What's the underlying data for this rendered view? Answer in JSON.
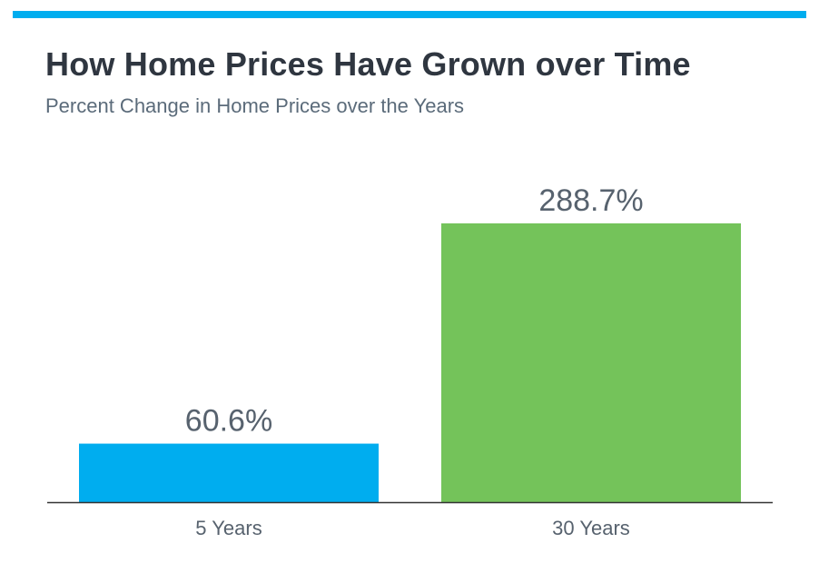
{
  "colors": {
    "accent": "#00adef",
    "title": "#2f3640",
    "subtitle": "#5b6b7a",
    "label": "#57626e",
    "axis": "#333333"
  },
  "header": {
    "title": "How Home Prices Have Grown over Time",
    "subtitle": "Percent Change in Home Prices over the Years"
  },
  "chart_data": {
    "type": "bar",
    "title": "How Home Prices Have Grown over Time",
    "subtitle": "Percent Change in Home Prices over the Years",
    "categories": [
      "5 Years",
      "30 Years"
    ],
    "values": [
      60.6,
      288.7
    ],
    "data_labels": [
      "60.6%",
      "288.7%"
    ],
    "bar_colors": [
      "#00adef",
      "#74c35a"
    ],
    "ylim": [
      0,
      300
    ],
    "grid": false,
    "legend": "none",
    "xlabel": "",
    "ylabel": ""
  }
}
